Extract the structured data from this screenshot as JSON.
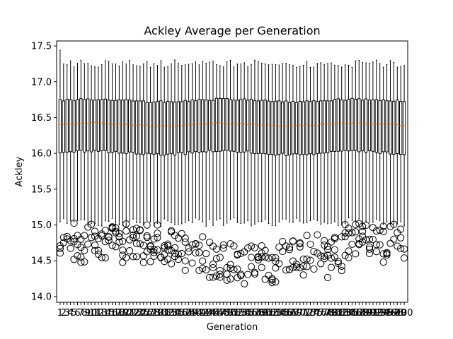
{
  "chart_data": {
    "type": "box",
    "title": "Ackley Average per Generation",
    "xlabel": "Generation",
    "ylabel": "Ackley",
    "ylim": [
      13.92,
      17.57
    ],
    "yticks": [
      "14.0",
      "14.5",
      "15.0",
      "15.5",
      "16.0",
      "16.5",
      "17.0",
      "17.5"
    ],
    "ytick_values": [
      14.0,
      14.5,
      15.0,
      15.5,
      16.0,
      16.5,
      17.0,
      17.5
    ],
    "categories_count": 100,
    "category_labels": [
      "1",
      "2",
      "3",
      "4",
      "5",
      "6",
      "7",
      "8",
      "9",
      "10",
      "11",
      "12",
      "13",
      "14",
      "15",
      "16",
      "17",
      "18",
      "19",
      "20",
      "21",
      "22",
      "23",
      "24",
      "25",
      "26",
      "27",
      "28",
      "29",
      "30",
      "31",
      "32",
      "33",
      "34",
      "35",
      "36",
      "37",
      "38",
      "39",
      "40",
      "41",
      "42",
      "43",
      "44",
      "45",
      "46",
      "47",
      "48",
      "49",
      "50",
      "51",
      "52",
      "53",
      "54",
      "55",
      "56",
      "57",
      "58",
      "59",
      "60",
      "61",
      "62",
      "63",
      "64",
      "65",
      "66",
      "67",
      "68",
      "69",
      "70",
      "71",
      "72",
      "73",
      "74",
      "75",
      "76",
      "77",
      "78",
      "79",
      "80",
      "81",
      "82",
      "83",
      "84",
      "85",
      "86",
      "87",
      "88",
      "89",
      "90",
      "91",
      "92",
      "93",
      "94",
      "95",
      "96",
      "97",
      "98",
      "99",
      "100"
    ],
    "box_summary": {
      "q1_range": [
        15.93,
        16.05
      ],
      "median_range": [
        16.36,
        16.43
      ],
      "q3_range": [
        16.68,
        16.77
      ],
      "whisker_high_range": [
        17.17,
        17.44
      ],
      "whisker_low_range": [
        14.98,
        15.1
      ],
      "flier_range": [
        14.07,
        15.08
      ]
    },
    "colors": {
      "box": "#000000",
      "median": "#ff7f0e",
      "flier_edge": "#000000"
    }
  }
}
